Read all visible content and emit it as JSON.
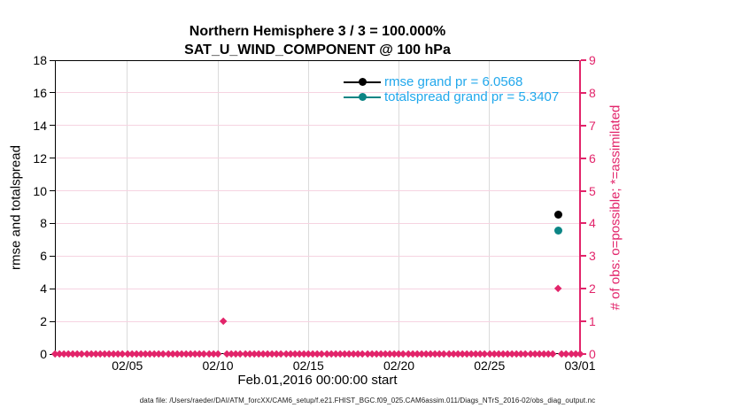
{
  "figure": {
    "background": "#ffffff"
  },
  "chart_data": {
    "type": "scatter",
    "title_line1": "Northern Hemisphere 3 / 3 = 100.000%",
    "title_line2": "SAT_U_WIND_COMPONENT @ 100 hPa",
    "xlabel": "Feb.01,2016 00:00:00 start",
    "ylabel_left": "rmse and totalspread",
    "ylabel_right": "# of obs: o=possible; *=assimilated",
    "x_axis": {
      "span_days": 29,
      "ticks": [
        {
          "day": 4,
          "label": "02/05"
        },
        {
          "day": 9,
          "label": "02/10"
        },
        {
          "day": 14,
          "label": "02/15"
        },
        {
          "day": 19,
          "label": "02/20"
        },
        {
          "day": 24,
          "label": "02/25"
        },
        {
          "day": 29,
          "label": "03/01"
        }
      ]
    },
    "y_left": {
      "min": 0,
      "max": 18,
      "step": 2
    },
    "y_right": {
      "min": 0,
      "max": 9,
      "step": 1
    },
    "grid": {
      "vertical": true,
      "horizontal": true,
      "legend_position": "top-right-inside",
      "legend_box": false
    },
    "legend": [
      {
        "series": "rmse",
        "label": "rmse grand pr = 6.0568"
      },
      {
        "series": "totalspread",
        "label": "totalspread grand pr = 5.3407"
      }
    ],
    "series": [
      {
        "name": "rmse",
        "axis": "left",
        "marker": "circle",
        "color": "#000000",
        "points": [
          {
            "day": 27.8,
            "value": 8.55
          }
        ]
      },
      {
        "name": "totalspread",
        "axis": "left",
        "marker": "circle",
        "color": "#0c8585",
        "points": [
          {
            "day": 27.8,
            "value": 7.55
          }
        ]
      },
      {
        "name": "obs_num_assimilated",
        "axis": "right",
        "marker": "diamond",
        "color": "#e2246a",
        "baseline": {
          "start_day": 0,
          "end_day": 29,
          "step_days": 0.25,
          "value": 0
        },
        "points": [
          {
            "day": 9.3,
            "value": 1
          },
          {
            "day": 27.8,
            "value": 2
          }
        ]
      }
    ],
    "colors": {
      "right_axis": "#e2246a",
      "legend_text": "#22a8ec",
      "grid_vertical": "#dbdbdb",
      "grid_horizontal": "#f6d3e1",
      "axis": "#000000"
    }
  },
  "footer": {
    "text": "data file: /Users/raeder/DAI/ATM_forcXX/CAM6_setup/f.e21.FHIST_BGC.f09_025.CAM6assim.011/Diags_NTrS_2016-02/obs_diag_output.nc"
  }
}
